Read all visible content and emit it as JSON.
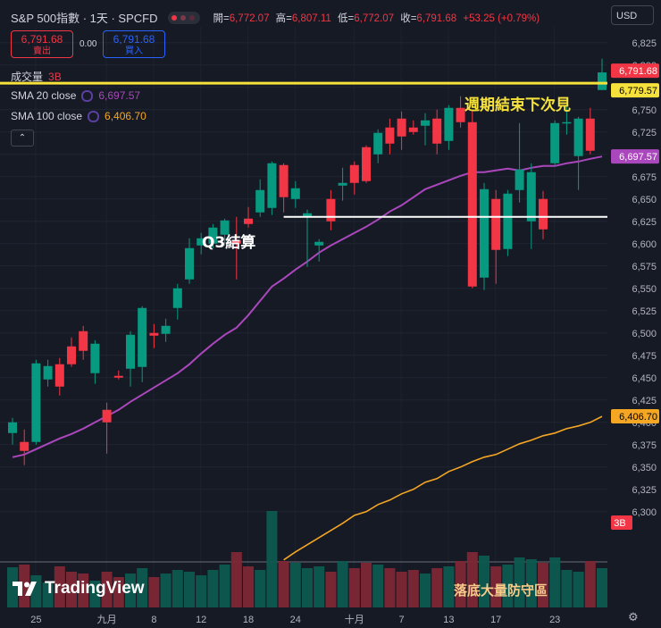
{
  "header": {
    "symbol": "S&P 500指數 · 1天 · SPCFD",
    "open_label": "開=",
    "open": "6,772.07",
    "high_label": "高=",
    "high": "6,807.11",
    "low_label": "低=",
    "low": "6,772.07",
    "close_label": "收=",
    "close": "6,791.68",
    "change": "+53.25 (+0.79%)"
  },
  "trade": {
    "sell_price": "6,791.68",
    "sell_label": "賣出",
    "spread": "0.00",
    "buy_price": "6,791.68",
    "buy_label": "買入"
  },
  "indicators": {
    "volume_label": "成交量",
    "volume_value": "3B",
    "sma20_label": "SMA 20 close",
    "sma20_value": "6,697.57",
    "sma100_label": "SMA 100 close",
    "sma100_value": "6,406.70",
    "collapse_icon": "chevron-up-icon"
  },
  "currency": "USD",
  "logo_text": "TradingView",
  "colors": {
    "up": "#089981",
    "down": "#f23645",
    "sma20": "#ab47bc",
    "sma100": "#f5a623",
    "highlight": "#f7e23c",
    "background": "#161a25"
  },
  "chart_data": {
    "type": "candlestick",
    "title": "S&P 500指數 · 1天 · SPCFD",
    "ylim": [
      6300,
      6837.5
    ],
    "y_ticks": [
      6825,
      6800,
      6775,
      6750,
      6725,
      6700,
      6675,
      6650,
      6625,
      6600,
      6575,
      6550,
      6525,
      6500,
      6475,
      6450,
      6425,
      6400,
      6375,
      6350,
      6325,
      6300
    ],
    "x_tick_labels": [
      "25",
      "九月",
      "8",
      "12",
      "18",
      "24",
      "十月",
      "7",
      "13",
      "17",
      "23"
    ],
    "candles": [
      {
        "o": 6388,
        "h": 6405,
        "l": 6375,
        "c": 6400
      },
      {
        "o": 6378,
        "h": 6392,
        "l": 6352,
        "c": 6368
      },
      {
        "o": 6378,
        "h": 6470,
        "l": 6375,
        "c": 6466
      },
      {
        "o": 6448,
        "h": 6470,
        "l": 6440,
        "c": 6463
      },
      {
        "o": 6465,
        "h": 6472,
        "l": 6430,
        "c": 6440
      },
      {
        "o": 6485,
        "h": 6495,
        "l": 6462,
        "c": 6465
      },
      {
        "o": 6502,
        "h": 6508,
        "l": 6470,
        "c": 6480
      },
      {
        "o": 6455,
        "h": 6492,
        "l": 6443,
        "c": 6488
      },
      {
        "o": 6414,
        "h": 6422,
        "l": 6365,
        "c": 6400
      },
      {
        "o": 6452,
        "h": 6458,
        "l": 6448,
        "c": 6450
      },
      {
        "o": 6460,
        "h": 6502,
        "l": 6440,
        "c": 6498
      },
      {
        "o": 6462,
        "h": 6530,
        "l": 6445,
        "c": 6528
      },
      {
        "o": 6500,
        "h": 6510,
        "l": 6483,
        "c": 6497
      },
      {
        "o": 6499,
        "h": 6516,
        "l": 6490,
        "c": 6508
      },
      {
        "o": 6528,
        "h": 6555,
        "l": 6515,
        "c": 6550
      },
      {
        "o": 6560,
        "h": 6606,
        "l": 6555,
        "c": 6595
      },
      {
        "o": 6598,
        "h": 6612,
        "l": 6588,
        "c": 6606
      },
      {
        "o": 6600,
        "h": 6622,
        "l": 6595,
        "c": 6618
      },
      {
        "o": 6610,
        "h": 6628,
        "l": 6598,
        "c": 6626
      },
      {
        "o": 6604,
        "h": 6630,
        "l": 6560,
        "c": 6600
      },
      {
        "o": 6628,
        "h": 6641,
        "l": 6618,
        "c": 6622
      },
      {
        "o": 6635,
        "h": 6672,
        "l": 6630,
        "c": 6660
      },
      {
        "o": 6640,
        "h": 6692,
        "l": 6632,
        "c": 6690
      },
      {
        "o": 6688,
        "h": 6690,
        "l": 6635,
        "c": 6652
      },
      {
        "o": 6650,
        "h": 6670,
        "l": 6640,
        "c": 6662
      },
      {
        "o": 6630,
        "h": 6638,
        "l": 6574,
        "c": 6634
      },
      {
        "o": 6598,
        "h": 6605,
        "l": 6580,
        "c": 6602
      },
      {
        "o": 6650,
        "h": 6660,
        "l": 6615,
        "c": 6625
      },
      {
        "o": 6665,
        "h": 6685,
        "l": 6648,
        "c": 6668
      },
      {
        "o": 6688,
        "h": 6692,
        "l": 6655,
        "c": 6668
      },
      {
        "o": 6708,
        "h": 6710,
        "l": 6668,
        "c": 6670
      },
      {
        "o": 6700,
        "h": 6728,
        "l": 6690,
        "c": 6724
      },
      {
        "o": 6730,
        "h": 6740,
        "l": 6700,
        "c": 6712
      },
      {
        "o": 6740,
        "h": 6748,
        "l": 6705,
        "c": 6720
      },
      {
        "o": 6730,
        "h": 6738,
        "l": 6722,
        "c": 6725
      },
      {
        "o": 6732,
        "h": 6746,
        "l": 6710,
        "c": 6738
      },
      {
        "o": 6740,
        "h": 6750,
        "l": 6700,
        "c": 6712
      },
      {
        "o": 6715,
        "h": 6755,
        "l": 6705,
        "c": 6752
      },
      {
        "o": 6752,
        "h": 6765,
        "l": 6730,
        "c": 6736
      },
      {
        "o": 6736,
        "h": 6750,
        "l": 6550,
        "c": 6552
      },
      {
        "o": 6562,
        "h": 6668,
        "l": 6548,
        "c": 6661
      },
      {
        "o": 6650,
        "h": 6660,
        "l": 6555,
        "c": 6593
      },
      {
        "o": 6594,
        "h": 6660,
        "l": 6586,
        "c": 6656
      },
      {
        "o": 6660,
        "h": 6735,
        "l": 6646,
        "c": 6683
      },
      {
        "o": 6625,
        "h": 6690,
        "l": 6594,
        "c": 6680
      },
      {
        "o": 6650,
        "h": 6659,
        "l": 6605,
        "c": 6616
      },
      {
        "o": 6690,
        "h": 6738,
        "l": 6686,
        "c": 6735
      },
      {
        "o": 6735,
        "h": 6755,
        "l": 6722,
        "c": 6736
      },
      {
        "o": 6698,
        "h": 6742,
        "l": 6660,
        "c": 6740
      },
      {
        "o": 6740,
        "h": 6752,
        "l": 6700,
        "c": 6704
      },
      {
        "o": 6772,
        "h": 6807,
        "l": 6772,
        "c": 6791.68
      }
    ],
    "sma20": [
      6361,
      6364,
      6370,
      6376,
      6382,
      6387,
      6393,
      6400,
      6407,
      6414,
      6423,
      6431,
      6439,
      6447,
      6455,
      6465,
      6477,
      6488,
      6498,
      6506,
      6520,
      6536,
      6552,
      6561,
      6571,
      6580,
      6590,
      6598,
      6605,
      6612,
      6619,
      6627,
      6636,
      6643,
      6652,
      6661,
      6666,
      6671,
      6676,
      6680,
      6680,
      6682,
      6684,
      6682,
      6685,
      6687,
      6687,
      6690,
      6692,
      6695,
      6697.57
    ],
    "sma100": [
      6246,
      6255,
      6263,
      6271,
      6279,
      6287,
      6296,
      6300,
      6308,
      6313,
      6320,
      6325,
      6333,
      6337,
      6345,
      6350,
      6356,
      6361,
      6364,
      6370,
      6376,
      6380,
      6385,
      6388,
      6393,
      6396,
      6400,
      6406.7
    ],
    "volume_scale_label": "3B",
    "horizontal_lines": [
      {
        "value": 6779.57,
        "label": "6,779.57"
      },
      {
        "value": 6630,
        "label": ""
      }
    ],
    "price_tags": [
      {
        "value": 6791.68,
        "label": "6,791.68"
      },
      {
        "value": 6779.57,
        "label": "6,779.57"
      },
      {
        "value": 6697.57,
        "label": "6,697.57"
      },
      {
        "value": 6406.7,
        "label": "6,406.70"
      }
    ],
    "annotations": {
      "q3_end": "Q3結算",
      "weekly_close": "週期結束下次見",
      "bottom_volume": "落底大量防守區"
    }
  }
}
